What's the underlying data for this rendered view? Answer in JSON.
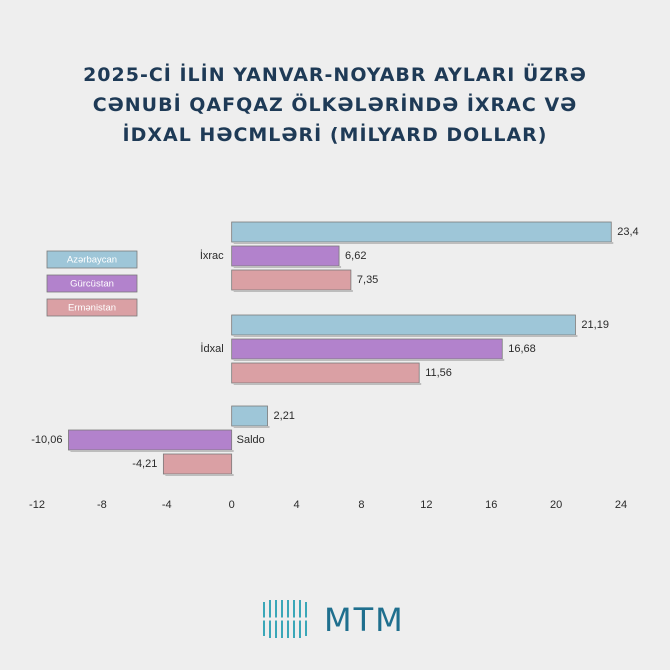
{
  "chart_data": {
    "type": "hbar",
    "title": "2025-Cİ İLİN YANVAR-NOYABR AYLARI ÜZRƏ CƏNUBİ QAFQAZ ÖLKƏLƏRİNDƏ İXRAC VƏ İDXAL HƏCMLƏRİ (MİLYARD DOLLAR)",
    "categories": [
      "İxrac",
      "İdxal",
      "Saldo"
    ],
    "series": [
      {
        "name": "Azərbaycan",
        "color": "#9ec6d8",
        "values": [
          23.4,
          21.19,
          2.21
        ],
        "value_labels": [
          "23,4",
          "21,19",
          "2,21"
        ]
      },
      {
        "name": "Gürcüstan",
        "color": "#b282cc",
        "values": [
          6.62,
          16.68,
          -10.06
        ],
        "value_labels": [
          "6,62",
          "16,68",
          "-10,06"
        ]
      },
      {
        "name": "Ermənistan",
        "color": "#daa0a4",
        "values": [
          7.35,
          11.56,
          -4.21
        ],
        "value_labels": [
          "7,35",
          "11,56",
          "-4,21"
        ]
      }
    ],
    "xlim": [
      -12,
      24
    ],
    "xticks": [
      -12,
      -8,
      -4,
      0,
      4,
      8,
      12,
      16,
      20,
      24
    ],
    "legend": "left"
  },
  "brand": "MTM"
}
